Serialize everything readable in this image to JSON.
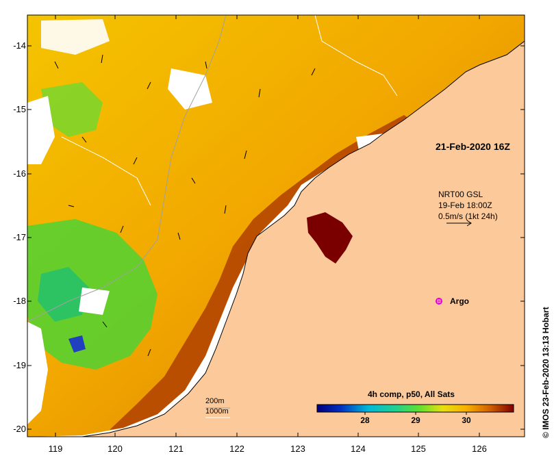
{
  "map": {
    "y_axis_labels": [
      "-14",
      "-15",
      "-16",
      "-17",
      "-18",
      "-19",
      "-20"
    ],
    "x_axis_labels": [
      "119",
      "120",
      "121",
      "122",
      "123",
      "124",
      "125",
      "126"
    ],
    "date_label": "21-Feb-2020 16Z",
    "current_vectors": {
      "source": "NRT00 GSL",
      "time": "19-Feb 18:00Z",
      "scale": "0.5m/s (1kt 24h)"
    },
    "argo_label": "Argo",
    "colorbar": {
      "title": "4h comp, p50, All Sats",
      "ticks": [
        "28",
        "29",
        "30"
      ]
    },
    "depth_contours": [
      "200m",
      "1000m"
    ],
    "credit": "IMOS 23-Feb-2020 13:13 Hobart",
    "colors": {
      "land": "#fbc99a",
      "inland": "#7a0000",
      "argo_marker": "#e000e0"
    }
  }
}
